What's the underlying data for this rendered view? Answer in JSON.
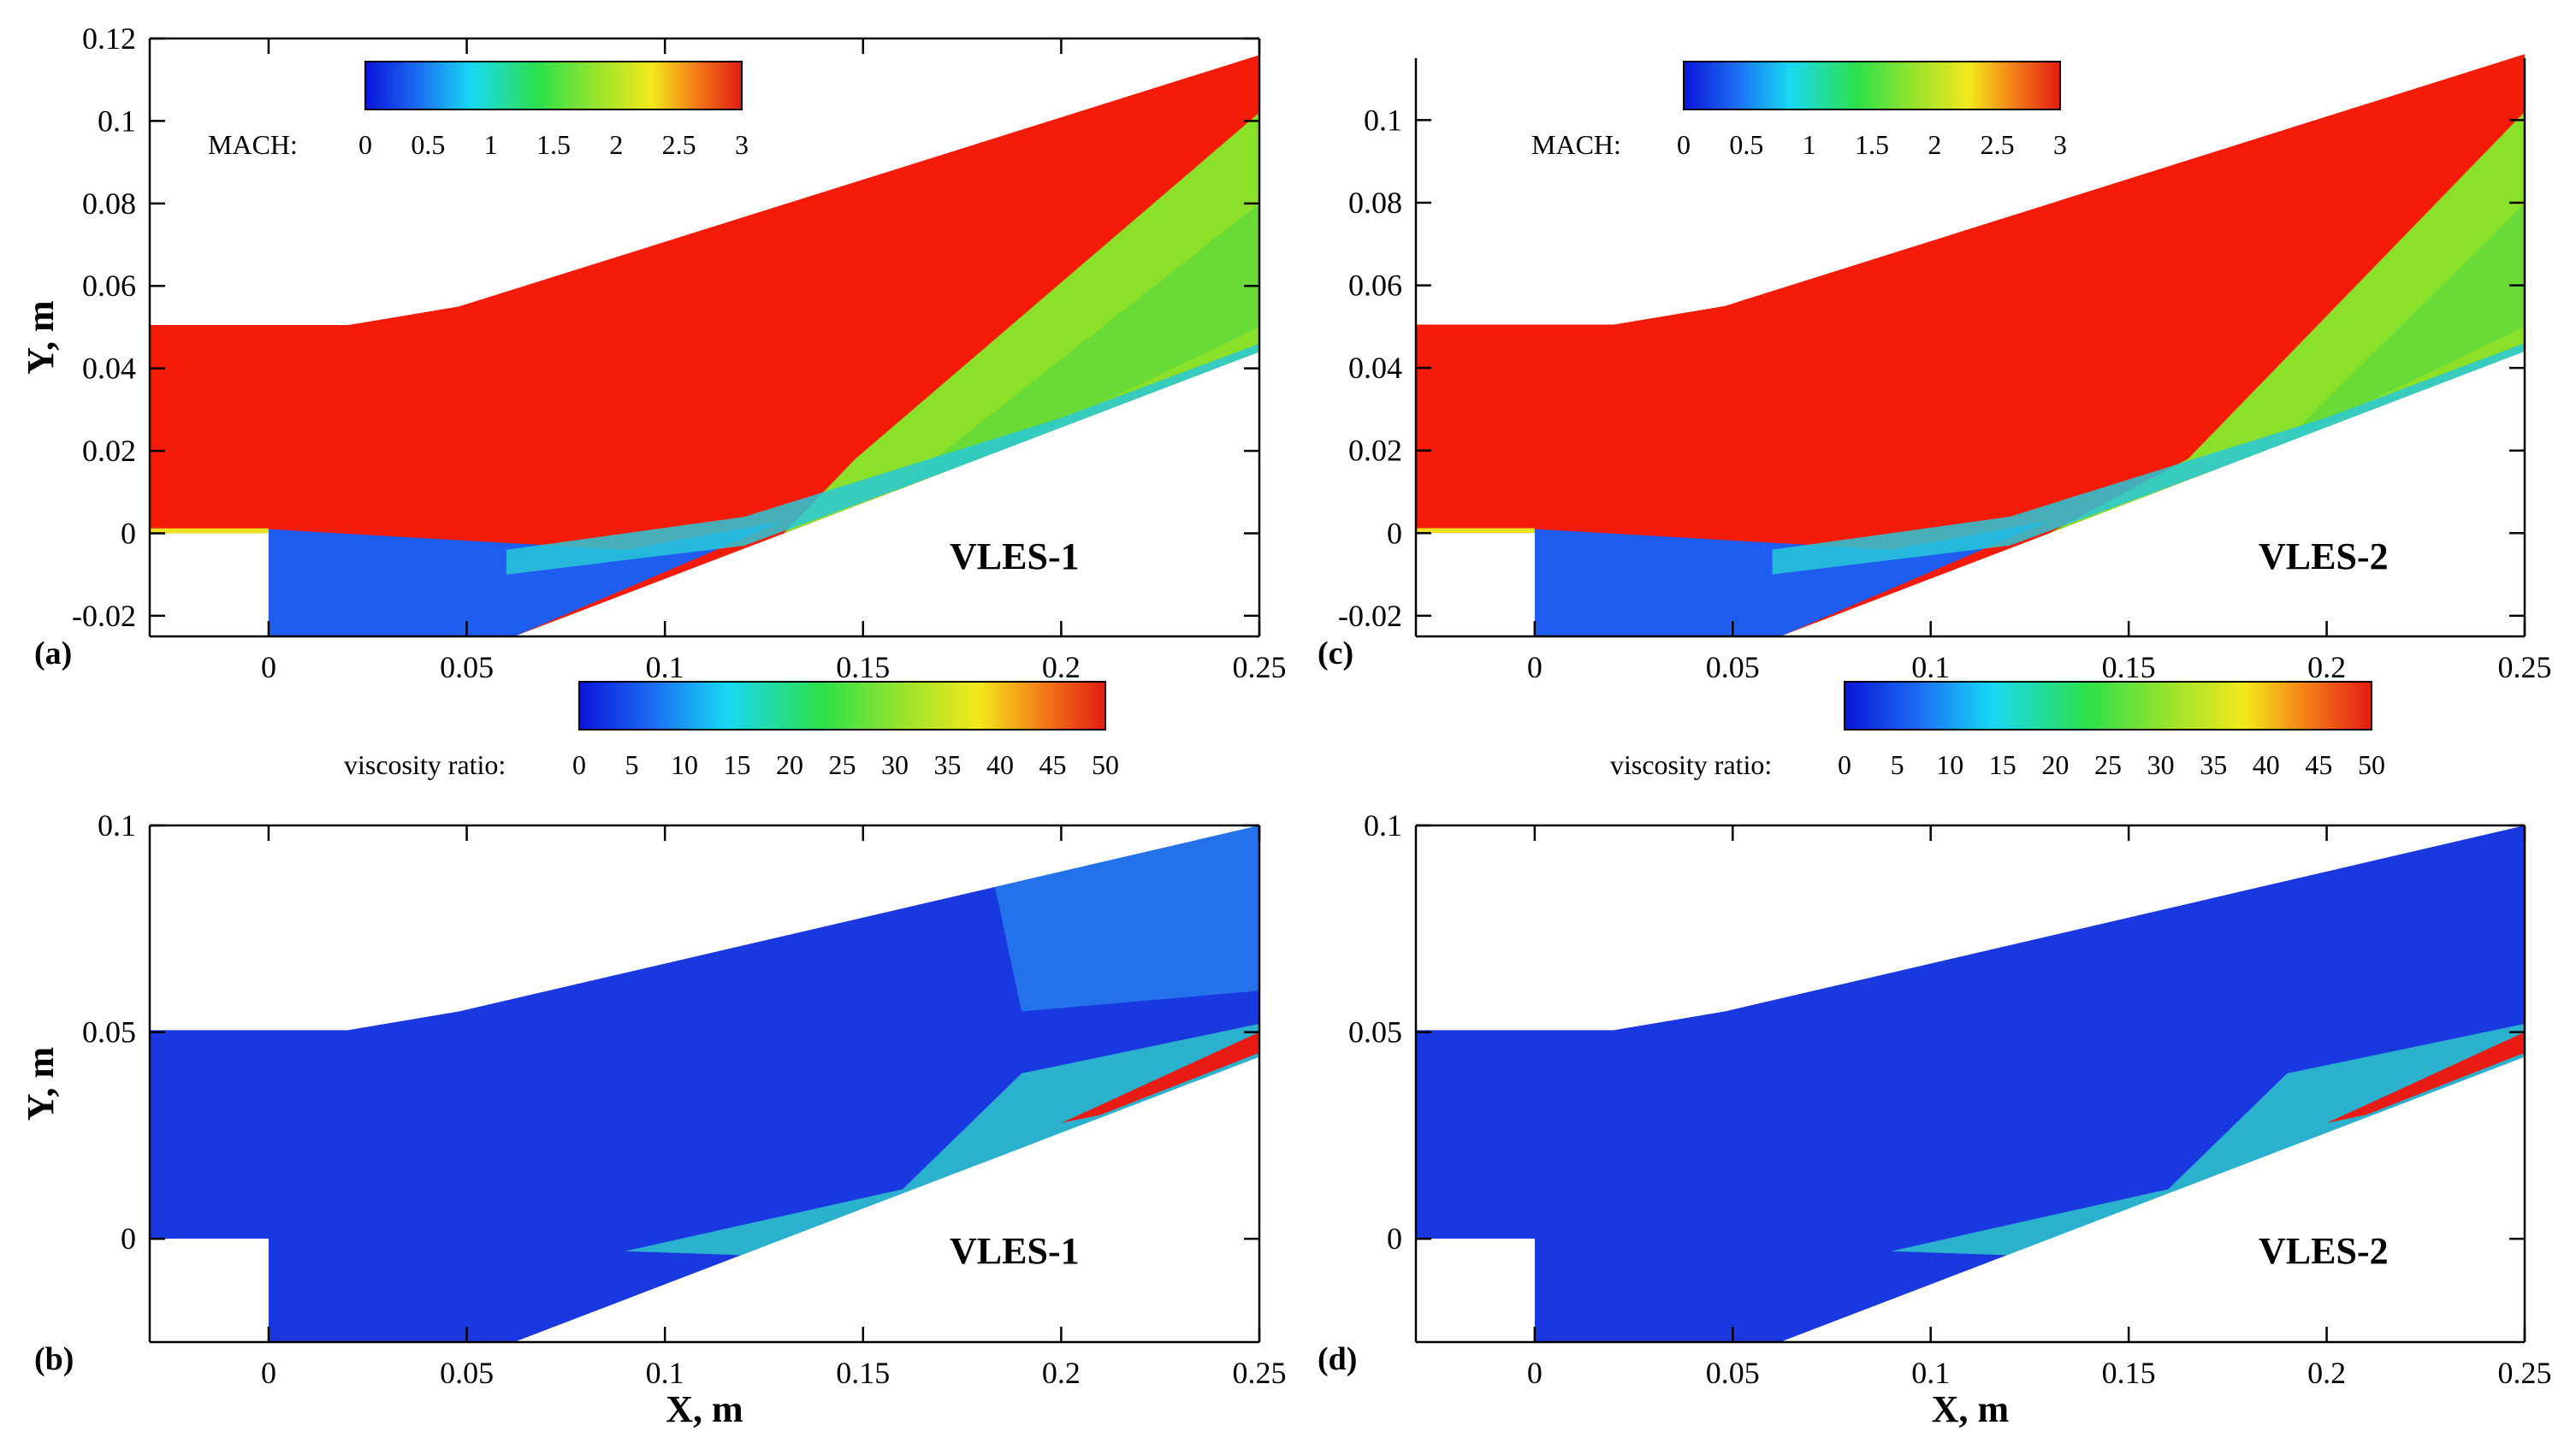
{
  "figure": {
    "x_axis_label": "X, m",
    "y_axis_label": "Y, m"
  },
  "chart_data": [
    {
      "type": "heatmap",
      "panel": "(a)",
      "variable": "MACH",
      "model": "VLES-1",
      "xlim": [
        -0.03,
        0.25
      ],
      "ylim": [
        -0.025,
        0.12
      ],
      "xticks": [
        0,
        0.05,
        0.1,
        0.15,
        0.2,
        0.25
      ],
      "xtick_labels": [
        "0",
        "0.05",
        "0.1",
        "0.15",
        "0.2",
        "0.25"
      ],
      "yticks": [
        -0.02,
        0,
        0.02,
        0.04,
        0.06,
        0.08,
        0.1,
        0.12
      ],
      "ytick_labels": [
        "-0.02",
        "0",
        "0.02",
        "0.04",
        "0.06",
        "0.08",
        "0.1",
        "0.12"
      ],
      "xlabel": "",
      "ylabel": "Y, m",
      "colorbar": {
        "label": "MACH:",
        "range": [
          0,
          3
        ],
        "ticks": [
          "0",
          "0.5",
          "1",
          "1.5",
          "2",
          "2.5",
          "3"
        ]
      }
    },
    {
      "type": "heatmap",
      "panel": "(c)",
      "variable": "MACH",
      "model": "VLES-2",
      "xlim": [
        -0.03,
        0.25
      ],
      "ylim": [
        -0.025,
        0.115
      ],
      "xticks": [
        0,
        0.05,
        0.1,
        0.15,
        0.2,
        0.25
      ],
      "xtick_labels": [
        "0",
        "0.05",
        "0.1",
        "0.15",
        "0.2",
        "0.25"
      ],
      "yticks": [
        -0.02,
        0,
        0.02,
        0.04,
        0.06,
        0.08,
        0.1
      ],
      "ytick_labels": [
        "-0.02",
        "0",
        "0.02",
        "0.04",
        "0.06",
        "0.08",
        "0.1"
      ],
      "xlabel": "",
      "ylabel": "",
      "colorbar": {
        "label": "MACH:",
        "range": [
          0,
          3
        ],
        "ticks": [
          "0",
          "0.5",
          "1",
          "1.5",
          "2",
          "2.5",
          "3"
        ]
      }
    },
    {
      "type": "heatmap",
      "panel": "(b)",
      "variable": "viscosity ratio",
      "model": "VLES-1",
      "xlim": [
        -0.03,
        0.25
      ],
      "ylim": [
        -0.025,
        0.1
      ],
      "xticks": [
        0,
        0.05,
        0.1,
        0.15,
        0.2,
        0.25
      ],
      "xtick_labels": [
        "0",
        "0.05",
        "0.1",
        "0.15",
        "0.2",
        "0.25"
      ],
      "yticks": [
        0,
        0.05,
        0.1
      ],
      "ytick_labels": [
        "0",
        "0.05",
        "0.1"
      ],
      "xlabel": "X, m",
      "ylabel": "Y, m",
      "colorbar": {
        "label": "viscosity ratio:",
        "range": [
          0,
          50
        ],
        "ticks": [
          "0",
          "5",
          "10",
          "15",
          "20",
          "25",
          "30",
          "35",
          "40",
          "45",
          "50"
        ]
      }
    },
    {
      "type": "heatmap",
      "panel": "(d)",
      "variable": "viscosity ratio",
      "model": "VLES-2",
      "xlim": [
        -0.03,
        0.25
      ],
      "ylim": [
        -0.025,
        0.1
      ],
      "xticks": [
        0,
        0.05,
        0.1,
        0.15,
        0.2,
        0.25
      ],
      "xtick_labels": [
        "0",
        "0.05",
        "0.1",
        "0.15",
        "0.2",
        "0.25"
      ],
      "yticks": [
        0,
        0.05,
        0.1
      ],
      "ytick_labels": [
        "0",
        "0.05",
        "0.1"
      ],
      "xlabel": "X, m",
      "ylabel": "",
      "colorbar": {
        "label": "viscosity ratio:",
        "range": [
          0,
          50
        ],
        "ticks": [
          "0",
          "5",
          "10",
          "15",
          "20",
          "25",
          "30",
          "35",
          "40",
          "45",
          "50"
        ]
      }
    }
  ]
}
